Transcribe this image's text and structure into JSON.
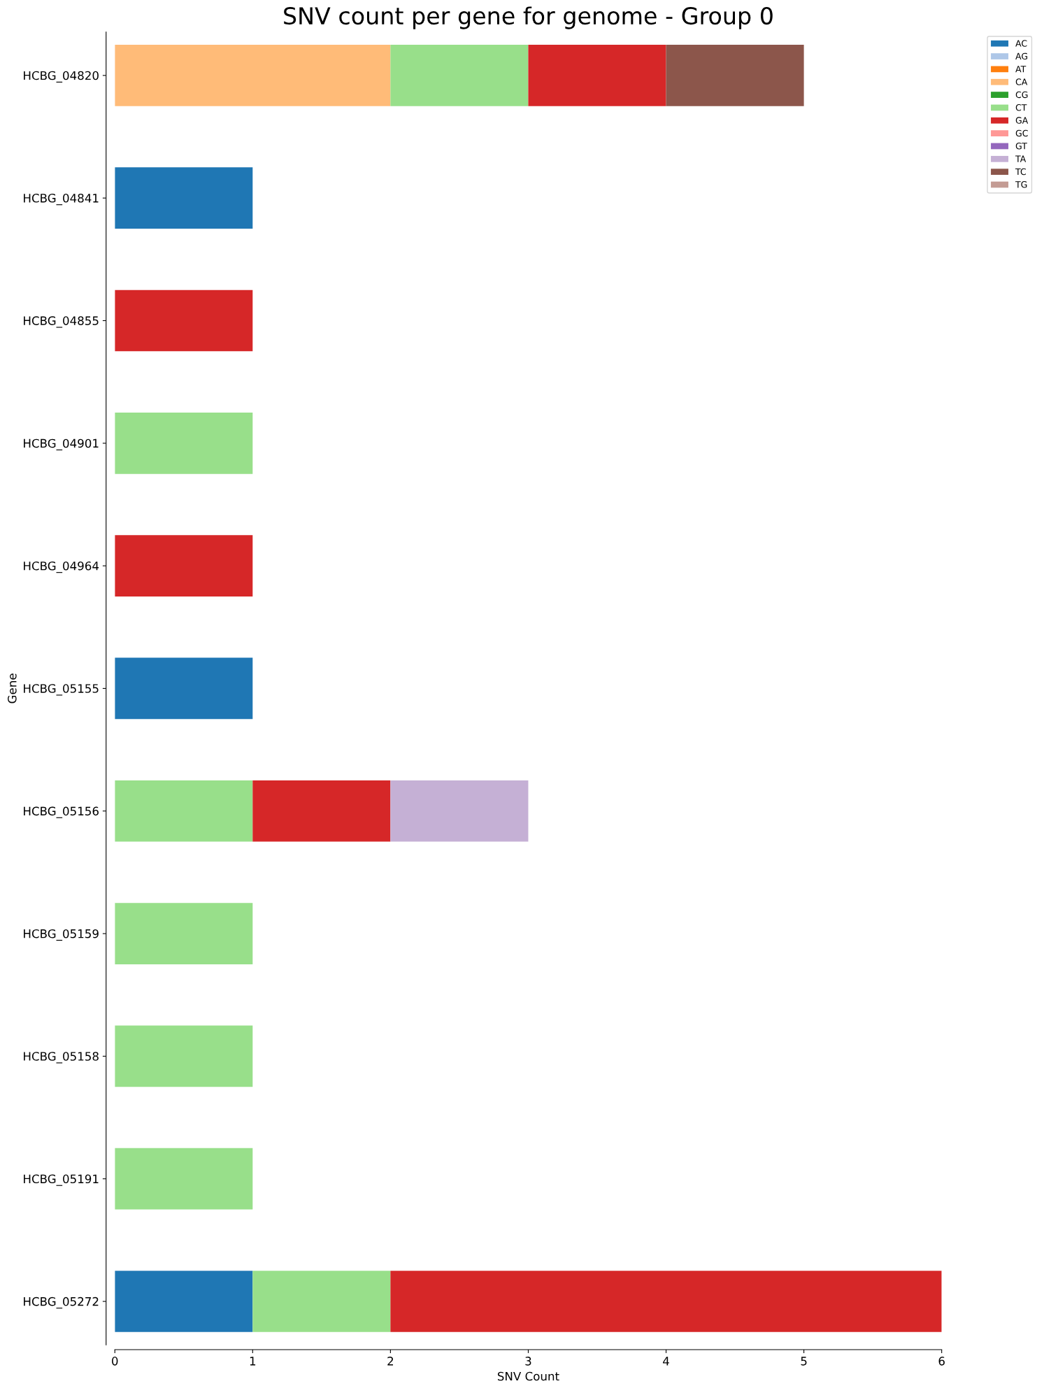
{
  "chart_data": {
    "type": "bar",
    "orientation": "horizontal",
    "stacked": true,
    "title": "SNV count per gene for genome - Group 0",
    "xlabel": "SNV Count",
    "ylabel": "Gene",
    "categories": [
      "HCBG_04820",
      "HCBG_04841",
      "HCBG_04855",
      "HCBG_04901",
      "HCBG_04964",
      "HCBG_05155",
      "HCBG_05156",
      "HCBG_05159",
      "HCBG_05158",
      "HCBG_05191",
      "HCBG_05272"
    ],
    "series": [
      {
        "name": "AC",
        "color": "#1f77b4",
        "values": [
          0,
          1,
          0,
          0,
          0,
          1,
          0,
          0,
          0,
          0,
          1
        ]
      },
      {
        "name": "AG",
        "color": "#aec7e8",
        "values": [
          0,
          0,
          0,
          0,
          0,
          0,
          0,
          0,
          0,
          0,
          0
        ]
      },
      {
        "name": "AT",
        "color": "#ff7f0e",
        "values": [
          0,
          0,
          0,
          0,
          0,
          0,
          0,
          0,
          0,
          0,
          0
        ]
      },
      {
        "name": "CA",
        "color": "#ffbb78",
        "values": [
          2,
          0,
          0,
          0,
          0,
          0,
          0,
          0,
          0,
          0,
          0
        ]
      },
      {
        "name": "CG",
        "color": "#2ca02c",
        "values": [
          0,
          0,
          0,
          0,
          0,
          0,
          0,
          0,
          0,
          0,
          0
        ]
      },
      {
        "name": "CT",
        "color": "#98df8a",
        "values": [
          1,
          0,
          0,
          1,
          0,
          0,
          1,
          1,
          1,
          1,
          1
        ]
      },
      {
        "name": "GA",
        "color": "#d62728",
        "values": [
          1,
          0,
          1,
          0,
          1,
          0,
          1,
          0,
          0,
          0,
          4
        ]
      },
      {
        "name": "GC",
        "color": "#ff9896",
        "values": [
          0,
          0,
          0,
          0,
          0,
          0,
          0,
          0,
          0,
          0,
          0
        ]
      },
      {
        "name": "GT",
        "color": "#9467bd",
        "values": [
          0,
          0,
          0,
          0,
          0,
          0,
          0,
          0,
          0,
          0,
          0
        ]
      },
      {
        "name": "TA",
        "color": "#c5b0d5",
        "values": [
          0,
          0,
          0,
          0,
          0,
          0,
          1,
          0,
          0,
          0,
          0
        ]
      },
      {
        "name": "TC",
        "color": "#8c564b",
        "values": [
          1,
          0,
          0,
          0,
          0,
          0,
          0,
          0,
          0,
          0,
          0
        ]
      },
      {
        "name": "TG",
        "color": "#c49c94",
        "values": [
          0,
          0,
          0,
          0,
          0,
          0,
          0,
          0,
          0,
          0,
          0
        ]
      }
    ],
    "xlim": [
      0,
      6
    ],
    "xticks": [
      0,
      1,
      2,
      3,
      4,
      5,
      6
    ],
    "grid": false,
    "legend": "top right"
  }
}
